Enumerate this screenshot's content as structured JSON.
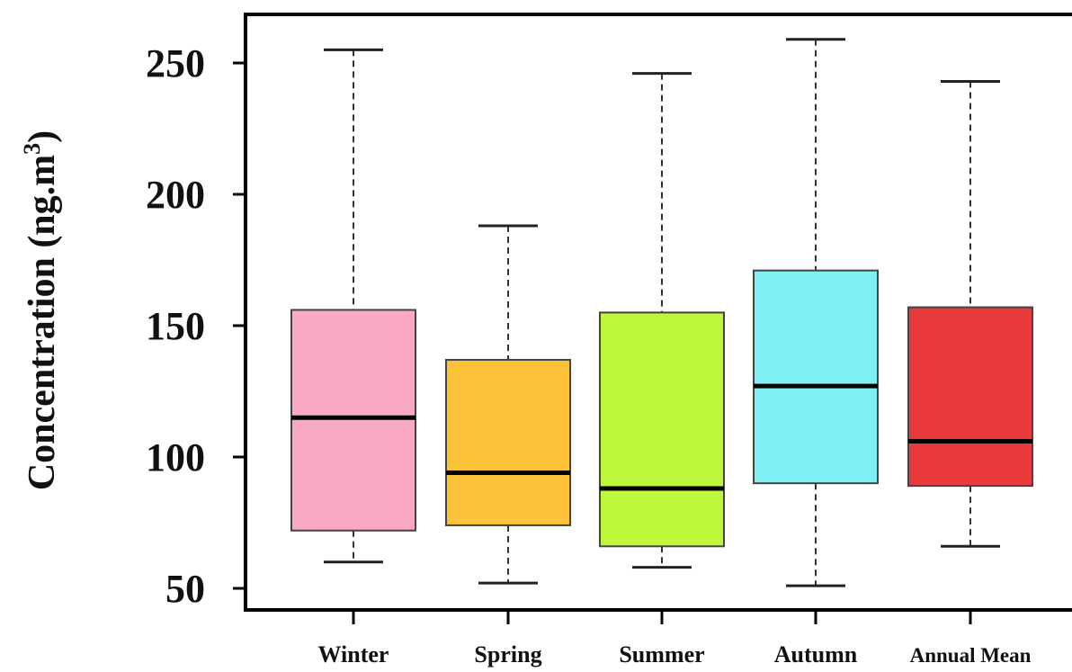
{
  "chart_data": {
    "type": "box",
    "title": "",
    "xlabel": "",
    "ylabel": "Concentration (ng.m3)",
    "ylabel_main": "Concentration (ng.m",
    "ylabel_sup": "3",
    "ylabel_close": ")",
    "ylim": [
      45,
      265
    ],
    "yticks": [
      50,
      100,
      150,
      200,
      250
    ],
    "categories": [
      "Winter",
      "Spring",
      "Summer",
      "Autumn",
      "Annual Mean"
    ],
    "boxes": [
      {
        "category": "Winter",
        "min": 60,
        "q1": 72,
        "median": 115,
        "q3": 156,
        "max": 255,
        "color": "#F9A8C5"
      },
      {
        "category": "Spring",
        "min": 52,
        "q1": 74,
        "median": 94,
        "q3": 137,
        "max": 188,
        "color": "#FCC238"
      },
      {
        "category": "Summer",
        "min": 58,
        "q1": 66,
        "median": 88,
        "q3": 155,
        "max": 246,
        "color": "#BEF83A"
      },
      {
        "category": "Autumn",
        "min": 51,
        "q1": 90,
        "median": 127,
        "q3": 171,
        "max": 259,
        "color": "#7FF0F4"
      },
      {
        "category": "Annual Mean",
        "min": 66,
        "q1": 89,
        "median": 106,
        "q3": 157,
        "max": 243,
        "color": "#E83A3A"
      }
    ],
    "grid": false,
    "legend": "none"
  }
}
